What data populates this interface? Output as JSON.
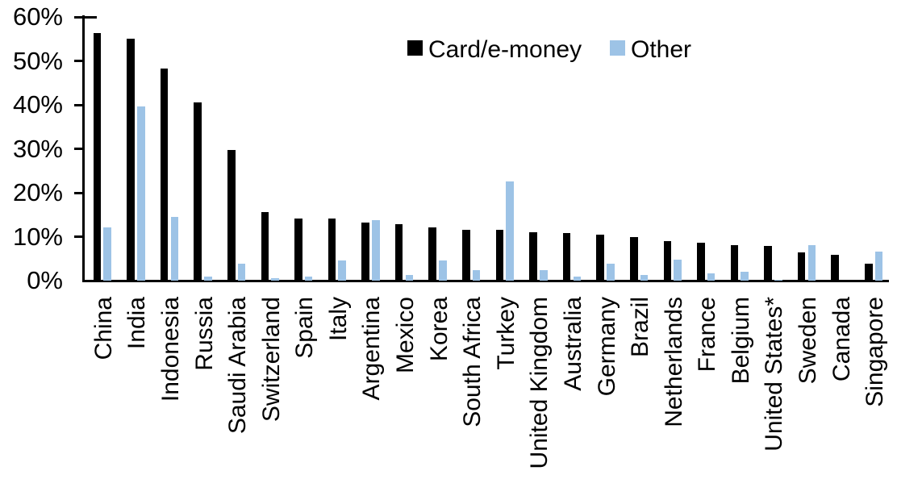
{
  "chart_data": {
    "type": "bar",
    "title": "",
    "xlabel": "",
    "ylabel": "",
    "ylim": [
      0,
      60
    ],
    "ytick_labels": [
      "0%",
      "10%",
      "20%",
      "30%",
      "40%",
      "50%",
      "60%"
    ],
    "ytick_values": [
      0,
      10,
      20,
      30,
      40,
      50,
      60
    ],
    "grid": "off",
    "legend_position": "top-center",
    "categories": [
      "China",
      "India",
      "Indonesia",
      "Russia",
      "Saudi Arabia",
      "Switzerland",
      "Spain",
      "Italy",
      "Argentina",
      "Mexico",
      "Korea",
      "South Africa",
      "Turkey",
      "United Kingdom",
      "Australia",
      "Germany",
      "Brazil",
      "Netherlands",
      "France",
      "Belgium",
      "United States*",
      "Sweden",
      "Canada",
      "Singapore"
    ],
    "series": [
      {
        "name": "Card/e-money",
        "color": "#000000",
        "values": [
          56.3,
          55.0,
          48.2,
          40.5,
          29.8,
          15.6,
          14.2,
          14.1,
          13.3,
          12.9,
          12.2,
          11.6,
          11.5,
          11.0,
          10.8,
          10.4,
          9.9,
          9.0,
          8.6,
          8.1,
          7.8,
          6.4,
          5.8,
          3.8
        ]
      },
      {
        "name": "Other",
        "color": "#9DC3E6",
        "values": [
          12.2,
          39.7,
          14.5,
          1.0,
          3.9,
          0.6,
          0.9,
          4.6,
          13.8,
          1.3,
          4.6,
          2.4,
          22.6,
          2.3,
          0.9,
          3.9,
          1.2,
          4.8,
          1.6,
          2.0,
          0.2,
          8.1,
          0.0,
          6.6
        ]
      }
    ]
  }
}
